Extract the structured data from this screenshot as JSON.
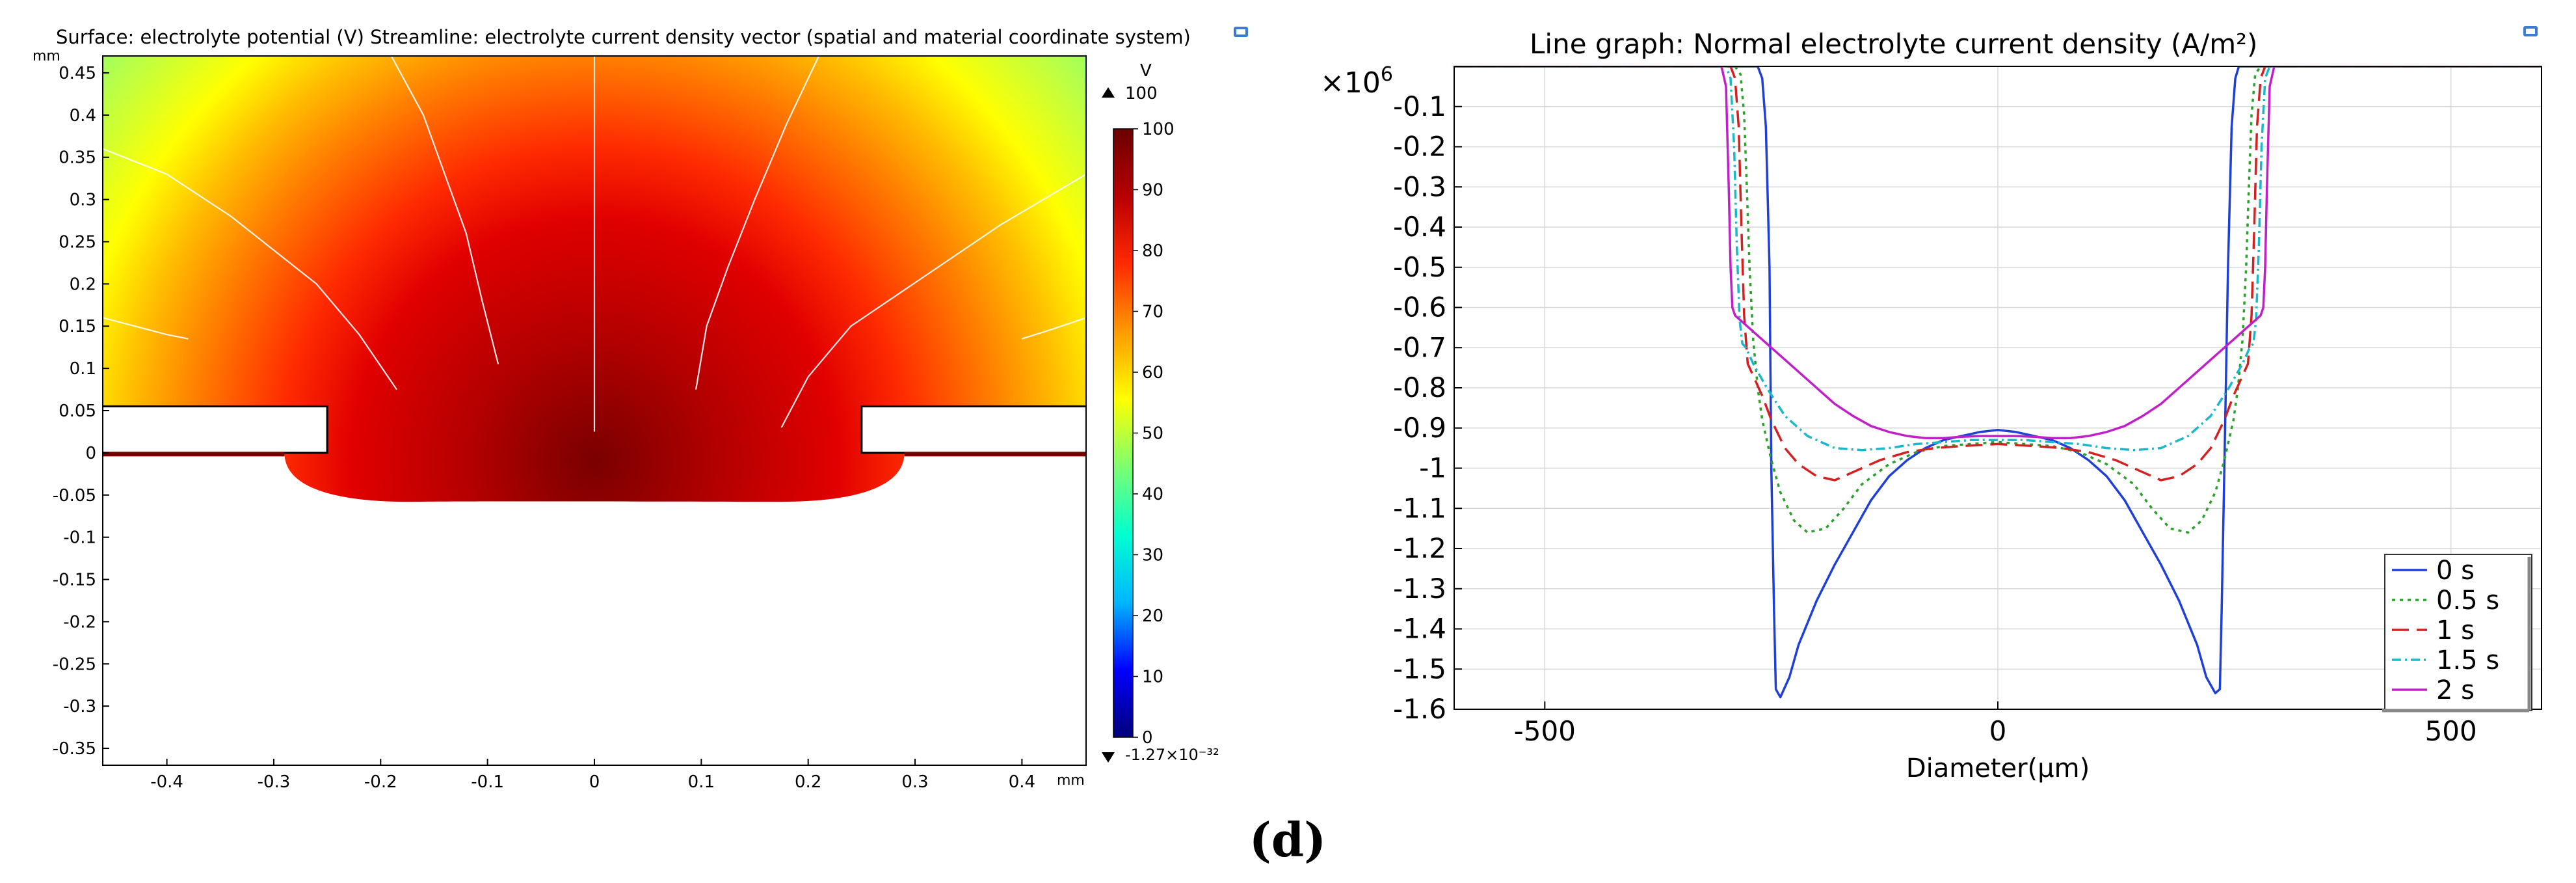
{
  "figure_label": "(d)",
  "chart_data": [
    {
      "type": "heatmap",
      "title": "Surface: electrolyte potential (V) Streamline: electrolyte current density vector (spatial and material coordinate system)",
      "x_unit": "mm",
      "y_unit": "mm",
      "xlim": [
        -0.46,
        0.46
      ],
      "ylim": [
        -0.37,
        0.47
      ],
      "x_ticks": [
        -0.4,
        -0.3,
        -0.2,
        -0.1,
        0,
        0.1,
        0.2,
        0.3,
        0.4
      ],
      "x_tick_labels": [
        "-0.4",
        "-0.3",
        "-0.2",
        "-0.1",
        "0",
        "0.1",
        "0.2",
        "0.3",
        "0.4"
      ],
      "y_ticks": [
        0.45,
        0.4,
        0.35,
        0.3,
        0.25,
        0.2,
        0.15,
        0.1,
        0.05,
        0,
        -0.05,
        -0.1,
        -0.15,
        -0.2,
        -0.25,
        -0.3,
        -0.35
      ],
      "y_tick_labels": [
        "0.45",
        "0.4",
        "0.35",
        "0.3",
        "0.25",
        "0.2",
        "0.15",
        "0.1",
        "0.05",
        "0",
        "-0.05",
        "-0.1",
        "-0.15",
        "-0.2",
        "-0.25",
        "-0.3",
        "-0.35"
      ],
      "colorbar": {
        "unit": "V",
        "max_marker": "100",
        "min_marker": "-1.27×10⁻³²",
        "ticks": [
          0,
          10,
          20,
          30,
          40,
          50,
          60,
          70,
          80,
          90,
          100
        ],
        "tick_labels": [
          "0",
          "10",
          "20",
          "30",
          "40",
          "50",
          "60",
          "70",
          "80",
          "90",
          "100"
        ],
        "range": [
          0,
          100
        ],
        "colormap": "rainbow",
        "stops": [
          "#00007a",
          "#0000ff",
          "#00b7ff",
          "#00ffd0",
          "#7dff70",
          "#ffff00",
          "#ff9a00",
          "#ff2a00",
          "#b80000",
          "#6a0000"
        ]
      },
      "geometry": {
        "mask_left": {
          "x": [
            -0.46,
            -0.25
          ],
          "y": [
            0,
            0.055
          ]
        },
        "mask_right": {
          "x": [
            0.25,
            0.46
          ],
          "y": [
            0,
            0.055
          ]
        },
        "cavity_depth": 0.058,
        "cavity_halfwidth": 0.29,
        "mask_opening_halfwidth": 0.25
      },
      "streamlines": [
        [
          [
            -0.46,
            0.36
          ],
          [
            -0.4,
            0.33
          ],
          [
            -0.34,
            0.28
          ],
          [
            -0.3,
            0.24
          ],
          [
            -0.26,
            0.2
          ],
          [
            -0.22,
            0.14
          ],
          [
            -0.185,
            0.075
          ]
        ],
        [
          [
            -0.46,
            0.16
          ],
          [
            -0.43,
            0.15
          ],
          [
            -0.4,
            0.14
          ],
          [
            -0.38,
            0.135
          ]
        ],
        [
          [
            -0.19,
            0.47
          ],
          [
            -0.16,
            0.4
          ],
          [
            -0.14,
            0.33
          ],
          [
            -0.12,
            0.26
          ],
          [
            -0.105,
            0.18
          ],
          [
            -0.09,
            0.105
          ]
        ],
        [
          [
            0,
            0.47
          ],
          [
            0,
            0.3
          ],
          [
            0,
            0.15
          ],
          [
            0,
            0.025
          ]
        ],
        [
          [
            0.21,
            0.47
          ],
          [
            0.18,
            0.39
          ],
          [
            0.15,
            0.3
          ],
          [
            0.125,
            0.22
          ],
          [
            0.105,
            0.15
          ],
          [
            0.095,
            0.075
          ]
        ],
        [
          [
            0.46,
            0.33
          ],
          [
            0.38,
            0.27
          ],
          [
            0.31,
            0.21
          ],
          [
            0.24,
            0.15
          ],
          [
            0.2,
            0.09
          ],
          [
            0.175,
            0.03
          ]
        ],
        [
          [
            0.46,
            0.16
          ],
          [
            0.43,
            0.147
          ],
          [
            0.4,
            0.135
          ]
        ]
      ]
    },
    {
      "type": "line",
      "title": "Line graph: Normal electrolyte current density  (A/m²)",
      "xlabel": "Diameter(μm)",
      "ylabel": "",
      "y_scale_label": "×10",
      "y_scale_exp": "6",
      "xlim": [
        -600,
        600
      ],
      "ylim": [
        -1.6,
        0
      ],
      "x_ticks": [
        -500,
        0,
        500
      ],
      "x_tick_labels": [
        "-500",
        "0",
        "500"
      ],
      "y_ticks": [
        -0.1,
        -0.2,
        -0.3,
        -0.4,
        -0.5,
        -0.6,
        -0.7,
        -0.8,
        -0.9,
        -1,
        -1.1,
        -1.2,
        -1.3,
        -1.4,
        -1.5,
        -1.6
      ],
      "y_tick_labels": [
        "-0.1",
        "-0.2",
        "-0.3",
        "-0.4",
        "-0.5",
        "-0.6",
        "-0.7",
        "-0.8",
        "-0.9",
        "-1",
        "-1.1",
        "-1.2",
        "-1.3",
        "-1.4",
        "-1.5",
        "-1.6"
      ],
      "grid": true,
      "legend_position": "bottom-right",
      "series": [
        {
          "name": "0 s",
          "color": "#1f3fd6",
          "dash": "",
          "x": [
            -600,
            -282,
            -275,
            -265,
            -260,
            -256,
            -252,
            -250,
            -247,
            -245,
            -240,
            -230,
            -220,
            -200,
            -180,
            -160,
            -140,
            -120,
            -100,
            -80,
            -60,
            -40,
            -20,
            0,
            20,
            40,
            60,
            80,
            100,
            120,
            140,
            160,
            180,
            200,
            220,
            230,
            240,
            245,
            247,
            250,
            254,
            258,
            262,
            266,
            272,
            278,
            600
          ],
          "y": [
            0,
            0,
            0,
            0,
            -0.03,
            -0.15,
            -0.5,
            -1.0,
            -1.35,
            -1.55,
            -1.57,
            -1.52,
            -1.44,
            -1.33,
            -1.24,
            -1.16,
            -1.08,
            -1.02,
            -0.98,
            -0.95,
            -0.93,
            -0.92,
            -0.91,
            -0.905,
            -0.91,
            -0.92,
            -0.93,
            -0.95,
            -0.98,
            -1.02,
            -1.08,
            -1.16,
            -1.24,
            -1.33,
            -1.44,
            -1.52,
            -1.56,
            -1.55,
            -1.35,
            -1.0,
            -0.5,
            -0.15,
            -0.03,
            0,
            0,
            0,
            0
          ]
        },
        {
          "name": "0.5 s",
          "color": "#2ca02c",
          "dash": "5,7",
          "x": [
            -600,
            -290,
            -284,
            -280,
            -277,
            -274,
            -270,
            -265,
            -260,
            -250,
            -240,
            -225,
            -210,
            -190,
            -170,
            -150,
            -120,
            -90,
            -60,
            -30,
            0,
            30,
            60,
            90,
            120,
            150,
            170,
            190,
            210,
            225,
            240,
            250,
            260,
            265,
            270,
            274,
            277,
            280,
            284,
            290,
            600
          ],
          "y": [
            0,
            0,
            -0.02,
            -0.12,
            -0.3,
            -0.5,
            -0.68,
            -0.8,
            -0.88,
            -0.98,
            -1.06,
            -1.13,
            -1.16,
            -1.15,
            -1.1,
            -1.04,
            -0.99,
            -0.96,
            -0.945,
            -0.94,
            -0.935,
            -0.94,
            -0.945,
            -0.96,
            -0.99,
            -1.04,
            -1.1,
            -1.15,
            -1.16,
            -1.13,
            -1.06,
            -0.98,
            -0.88,
            -0.8,
            -0.68,
            -0.5,
            -0.3,
            -0.12,
            -0.02,
            0,
            0
          ]
        },
        {
          "name": "1 s",
          "color": "#d42020",
          "dash": "26,12",
          "x": [
            -600,
            -295,
            -290,
            -286,
            -283,
            -280,
            -276,
            -270,
            -260,
            -250,
            -235,
            -220,
            -200,
            -180,
            -160,
            -130,
            -100,
            -70,
            -40,
            0,
            40,
            70,
            100,
            130,
            160,
            180,
            200,
            220,
            235,
            250,
            260,
            270,
            276,
            280,
            283,
            286,
            290,
            295,
            600
          ],
          "y": [
            0,
            0,
            -0.03,
            -0.15,
            -0.4,
            -0.62,
            -0.74,
            -0.77,
            -0.82,
            -0.88,
            -0.95,
            -0.99,
            -1.02,
            -1.03,
            -1.01,
            -0.98,
            -0.96,
            -0.95,
            -0.945,
            -0.94,
            -0.945,
            -0.95,
            -0.96,
            -0.98,
            -1.01,
            -1.03,
            -1.02,
            -0.99,
            -0.95,
            -0.88,
            -0.82,
            -0.77,
            -0.74,
            -0.62,
            -0.4,
            -0.15,
            -0.03,
            0,
            0
          ]
        },
        {
          "name": "1.5 s",
          "color": "#1ab8c8",
          "dash": "14,6,3,6",
          "x": [
            -600,
            -300,
            -295,
            -291,
            -288,
            -285,
            -282,
            -278,
            -270,
            -255,
            -235,
            -210,
            -180,
            -150,
            -120,
            -90,
            -60,
            -30,
            0,
            30,
            60,
            90,
            120,
            150,
            180,
            210,
            235,
            255,
            270,
            278,
            282,
            285,
            288,
            291,
            295,
            300,
            600
          ],
          "y": [
            0,
            0,
            -0.03,
            -0.2,
            -0.45,
            -0.63,
            -0.69,
            -0.7,
            -0.74,
            -0.8,
            -0.87,
            -0.92,
            -0.95,
            -0.955,
            -0.95,
            -0.94,
            -0.935,
            -0.93,
            -0.93,
            -0.93,
            -0.935,
            -0.94,
            -0.95,
            -0.955,
            -0.95,
            -0.92,
            -0.87,
            -0.8,
            -0.74,
            -0.7,
            -0.69,
            -0.63,
            -0.45,
            -0.2,
            -0.03,
            0,
            0
          ]
        },
        {
          "name": "2 s",
          "color": "#c020c8",
          "dash": "",
          "x": [
            -600,
            -305,
            -300,
            -297,
            -295,
            -293,
            -290,
            -280,
            -260,
            -240,
            -220,
            -200,
            -180,
            -160,
            -140,
            -120,
            -100,
            -80,
            -60,
            -40,
            -20,
            0,
            20,
            40,
            60,
            80,
            100,
            120,
            140,
            160,
            180,
            200,
            220,
            240,
            260,
            280,
            290,
            293,
            295,
            297,
            300,
            305,
            600
          ],
          "y": [
            0,
            0,
            -0.05,
            -0.3,
            -0.5,
            -0.6,
            -0.62,
            -0.64,
            -0.68,
            -0.72,
            -0.76,
            -0.8,
            -0.84,
            -0.87,
            -0.895,
            -0.91,
            -0.92,
            -0.925,
            -0.925,
            -0.922,
            -0.92,
            -0.92,
            -0.92,
            -0.922,
            -0.925,
            -0.925,
            -0.92,
            -0.91,
            -0.895,
            -0.87,
            -0.84,
            -0.8,
            -0.76,
            -0.72,
            -0.68,
            -0.64,
            -0.62,
            -0.6,
            -0.5,
            -0.3,
            -0.05,
            0,
            0
          ]
        }
      ]
    }
  ]
}
